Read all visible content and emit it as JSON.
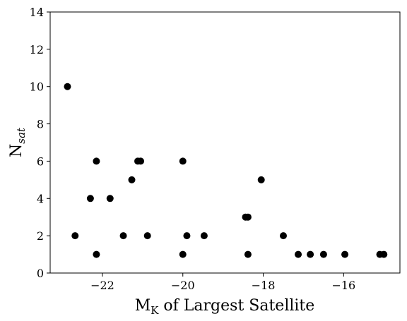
{
  "chart_data": {
    "type": "scatter",
    "title": "",
    "xlabel_main": "M",
    "xlabel_sub": "K",
    "xlabel_rest": " of Largest Satellite",
    "ylabel_main": "N",
    "ylabel_sub": "sat",
    "xlim": [
      -23.3,
      -14.6
    ],
    "ylim": [
      0,
      14
    ],
    "xticks": [
      -22,
      -20,
      -18,
      -16
    ],
    "xtick_labels": [
      "−22",
      "−20",
      "−18",
      "−16"
    ],
    "yticks": [
      0,
      2,
      4,
      6,
      8,
      10,
      12,
      14
    ],
    "ytick_labels": [
      "0",
      "2",
      "4",
      "6",
      "8",
      "10",
      "12",
      "14"
    ],
    "grid": false,
    "marker_color": "#000000",
    "series": [
      {
        "points": [
          {
            "x": -22.87,
            "y": 10
          },
          {
            "x": -22.68,
            "y": 2
          },
          {
            "x": -22.3,
            "y": 4
          },
          {
            "x": -22.15,
            "y": 6
          },
          {
            "x": -22.15,
            "y": 1
          },
          {
            "x": -21.81,
            "y": 4
          },
          {
            "x": -21.48,
            "y": 2
          },
          {
            "x": -21.27,
            "y": 5
          },
          {
            "x": -21.12,
            "y": 6
          },
          {
            "x": -21.05,
            "y": 6
          },
          {
            "x": -20.88,
            "y": 2
          },
          {
            "x": -20.0,
            "y": 6
          },
          {
            "x": -20.0,
            "y": 1
          },
          {
            "x": -19.9,
            "y": 2
          },
          {
            "x": -19.47,
            "y": 2
          },
          {
            "x": -18.44,
            "y": 3
          },
          {
            "x": -18.38,
            "y": 3
          },
          {
            "x": -18.38,
            "y": 1
          },
          {
            "x": -18.05,
            "y": 5
          },
          {
            "x": -17.5,
            "y": 2
          },
          {
            "x": -17.13,
            "y": 1
          },
          {
            "x": -16.83,
            "y": 1
          },
          {
            "x": -16.5,
            "y": 1
          },
          {
            "x": -15.97,
            "y": 1
          },
          {
            "x": -15.1,
            "y": 1
          },
          {
            "x": -15.0,
            "y": 1
          }
        ]
      }
    ]
  }
}
